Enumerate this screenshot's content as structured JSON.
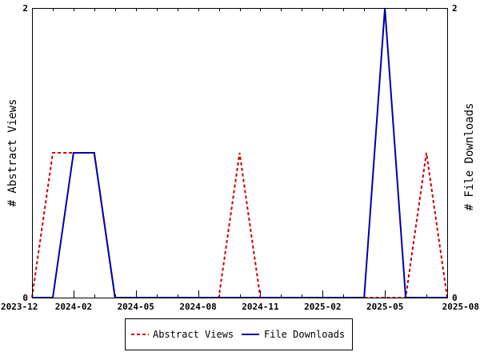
{
  "chart_data": {
    "type": "line",
    "x": [
      "2023-12",
      "2024-01",
      "2024-02",
      "2024-03",
      "2024-04",
      "2024-05",
      "2024-06",
      "2024-07",
      "2024-08",
      "2024-09",
      "2024-10",
      "2024-11",
      "2024-12",
      "2025-01",
      "2025-02",
      "2025-03",
      "2025-04",
      "2025-05",
      "2025-06",
      "2025-07",
      "2025-08"
    ],
    "series": [
      {
        "name": "Abstract Views",
        "color": "#cc0000",
        "dash": "dashed",
        "axis": "left",
        "values": [
          0,
          1,
          1,
          1,
          0,
          0,
          0,
          0,
          0,
          0,
          1,
          0,
          0,
          0,
          0,
          0,
          0,
          0,
          0,
          1,
          0
        ]
      },
      {
        "name": "File Downloads",
        "color": "#0000aa",
        "dash": "solid",
        "axis": "right",
        "values": [
          0,
          0,
          1,
          1,
          0,
          0,
          0,
          0,
          0,
          0,
          0,
          0,
          0,
          0,
          0,
          0,
          0,
          2,
          0,
          0,
          0
        ]
      }
    ],
    "xticks": [
      "2023-12",
      "2024-02",
      "2024-05",
      "2024-08",
      "2024-11",
      "2025-02",
      "2025-05",
      "2025-08"
    ],
    "ylabel_left": "# Abstract Views",
    "ylabel_right": "# File Downloads",
    "yticks_left": [
      "0",
      "2"
    ],
    "yticks_right": [
      "0",
      "2"
    ],
    "ylim": [
      0,
      2
    ],
    "grid": false,
    "legend_placement": "bottom-center"
  }
}
